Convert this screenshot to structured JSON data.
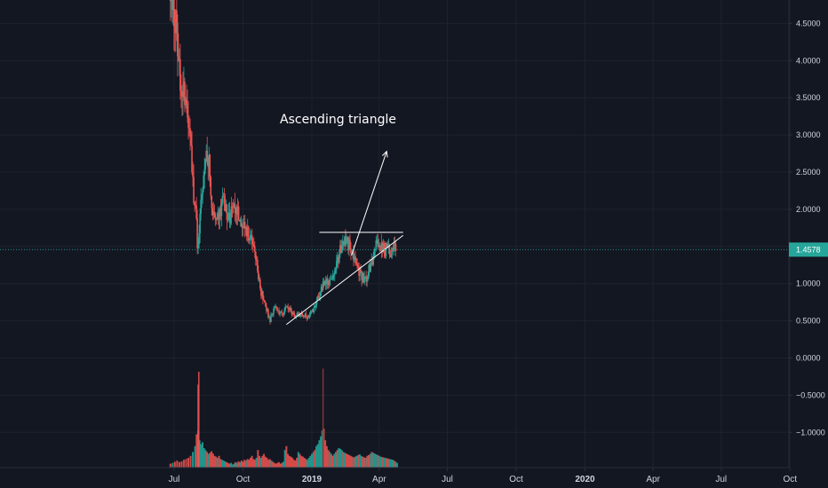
{
  "chart_data": {
    "type": "candlestick",
    "annotation": "Ascending triangle",
    "last_price": "1.4578",
    "last_price_value": 1.4578,
    "y_ticks": [
      "4.5000",
      "4.0000",
      "3.5000",
      "3.0000",
      "2.5000",
      "2.0000",
      "1.5000",
      "1.0000",
      "0.5000",
      "0.0000",
      "−0.5000",
      "−1.0000"
    ],
    "y_tick_values": [
      4.5,
      4.0,
      3.5,
      3.0,
      2.5,
      2.0,
      1.5,
      1.0,
      0.5,
      0.0,
      -0.5,
      -1.0
    ],
    "x_ticks": [
      "Jul",
      "Oct",
      "2019",
      "Apr",
      "Jul",
      "Oct",
      "2020",
      "Apr",
      "Jul",
      "Oct"
    ],
    "x_tick_bold": [
      false,
      false,
      true,
      false,
      false,
      false,
      true,
      false,
      false,
      false
    ],
    "x_tick_days": [
      0,
      92,
      184,
      274,
      365,
      457,
      549,
      640,
      731,
      823
    ],
    "x_start_day": -20,
    "price_path": [
      [
        -5,
        4.9
      ],
      [
        0,
        4.7
      ],
      [
        4,
        4.3
      ],
      [
        8,
        3.8
      ],
      [
        12,
        3.6
      ],
      [
        16,
        3.3
      ],
      [
        20,
        3.0
      ],
      [
        23,
        2.7
      ],
      [
        26,
        2.2
      ],
      [
        29,
        2.0
      ],
      [
        31,
        1.5
      ],
      [
        33,
        1.6
      ],
      [
        36,
        2.1
      ],
      [
        40,
        2.5
      ],
      [
        43,
        2.8
      ],
      [
        46,
        2.7
      ],
      [
        49,
        2.2
      ],
      [
        52,
        2.0
      ],
      [
        55,
        1.8
      ],
      [
        58,
        1.9
      ],
      [
        62,
        2.0
      ],
      [
        66,
        2.1
      ],
      [
        70,
        1.95
      ],
      [
        74,
        1.9
      ],
      [
        78,
        2.05
      ],
      [
        82,
        2.0
      ],
      [
        86,
        1.9
      ],
      [
        90,
        1.85
      ],
      [
        94,
        1.75
      ],
      [
        98,
        1.7
      ],
      [
        102,
        1.6
      ],
      [
        106,
        1.5
      ],
      [
        110,
        1.3
      ],
      [
        113,
        1.1
      ],
      [
        116,
        0.9
      ],
      [
        119,
        0.8
      ],
      [
        122,
        0.7
      ],
      [
        125,
        0.6
      ],
      [
        128,
        0.5
      ],
      [
        131,
        0.6
      ],
      [
        134,
        0.7
      ],
      [
        138,
        0.65
      ],
      [
        142,
        0.6
      ],
      [
        146,
        0.62
      ],
      [
        150,
        0.68
      ],
      [
        154,
        0.64
      ],
      [
        158,
        0.6
      ],
      [
        162,
        0.58
      ],
      [
        166,
        0.6
      ],
      [
        170,
        0.58
      ],
      [
        174,
        0.57
      ],
      [
        178,
        0.55
      ],
      [
        182,
        0.6
      ],
      [
        186,
        0.65
      ],
      [
        190,
        0.75
      ],
      [
        194,
        0.85
      ],
      [
        198,
        0.95
      ],
      [
        202,
        1.05
      ],
      [
        206,
        1.0
      ],
      [
        210,
        1.1
      ],
      [
        214,
        1.2
      ],
      [
        218,
        1.3
      ],
      [
        222,
        1.45
      ],
      [
        226,
        1.55
      ],
      [
        230,
        1.6
      ],
      [
        234,
        1.5
      ],
      [
        238,
        1.4
      ],
      [
        242,
        1.3
      ],
      [
        246,
        1.2
      ],
      [
        250,
        1.1
      ],
      [
        254,
        1.05
      ],
      [
        258,
        1.1
      ],
      [
        262,
        1.25
      ],
      [
        266,
        1.35
      ],
      [
        270,
        1.5
      ],
      [
        274,
        1.55
      ],
      [
        278,
        1.5
      ],
      [
        282,
        1.45
      ],
      [
        286,
        1.5
      ],
      [
        290,
        1.42
      ],
      [
        294,
        1.47
      ],
      [
        297,
        1.4578
      ]
    ],
    "volumes": [
      [
        -5,
        0.1
      ],
      [
        -2,
        0.12
      ],
      [
        1,
        0.15
      ],
      [
        4,
        0.18
      ],
      [
        7,
        0.14
      ],
      [
        10,
        0.16
      ],
      [
        13,
        0.2
      ],
      [
        16,
        0.22
      ],
      [
        19,
        0.25
      ],
      [
        22,
        0.3
      ],
      [
        25,
        0.4
      ],
      [
        28,
        0.55
      ],
      [
        30,
        0.85
      ],
      [
        32,
        0.95
      ],
      [
        34,
        0.7
      ],
      [
        36,
        0.6
      ],
      [
        38,
        0.65
      ],
      [
        40,
        0.5
      ],
      [
        42,
        0.45
      ],
      [
        44,
        0.4
      ],
      [
        46,
        0.35
      ],
      [
        48,
        0.38
      ],
      [
        50,
        0.42
      ],
      [
        52,
        0.36
      ],
      [
        54,
        0.3
      ],
      [
        56,
        0.28
      ],
      [
        58,
        0.25
      ],
      [
        60,
        0.3
      ],
      [
        62,
        0.22
      ],
      [
        64,
        0.2
      ],
      [
        66,
        0.18
      ],
      [
        68,
        0.16
      ],
      [
        70,
        0.14
      ],
      [
        72,
        0.12
      ],
      [
        74,
        0.1
      ],
      [
        76,
        0.12
      ],
      [
        78,
        0.08
      ],
      [
        80,
        0.1
      ],
      [
        82,
        0.14
      ],
      [
        84,
        0.12
      ],
      [
        86,
        0.16
      ],
      [
        88,
        0.14
      ],
      [
        90,
        0.18
      ],
      [
        92,
        0.15
      ],
      [
        94,
        0.2
      ],
      [
        96,
        0.18
      ],
      [
        98,
        0.22
      ],
      [
        100,
        0.2
      ],
      [
        102,
        0.25
      ],
      [
        104,
        0.3
      ],
      [
        106,
        0.22
      ],
      [
        108,
        0.2
      ],
      [
        110,
        0.25
      ],
      [
        112,
        0.45
      ],
      [
        114,
        0.3
      ],
      [
        116,
        0.25
      ],
      [
        118,
        0.3
      ],
      [
        120,
        0.35
      ],
      [
        122,
        0.28
      ],
      [
        124,
        0.25
      ],
      [
        126,
        0.2
      ],
      [
        128,
        0.22
      ],
      [
        130,
        0.18
      ],
      [
        132,
        0.15
      ],
      [
        134,
        0.12
      ],
      [
        136,
        0.1
      ],
      [
        138,
        0.12
      ],
      [
        140,
        0.14
      ],
      [
        142,
        0.1
      ],
      [
        144,
        0.12
      ],
      [
        146,
        0.15
      ],
      [
        148,
        0.45
      ],
      [
        150,
        0.55
      ],
      [
        152,
        0.35
      ],
      [
        154,
        0.3
      ],
      [
        156,
        0.28
      ],
      [
        158,
        0.25
      ],
      [
        160,
        0.2
      ],
      [
        162,
        0.18
      ],
      [
        164,
        0.25
      ],
      [
        166,
        0.4
      ],
      [
        168,
        0.35
      ],
      [
        170,
        0.3
      ],
      [
        172,
        0.28
      ],
      [
        174,
        0.25
      ],
      [
        176,
        0.22
      ],
      [
        178,
        0.2
      ],
      [
        180,
        0.25
      ],
      [
        182,
        0.3
      ],
      [
        184,
        0.35
      ],
      [
        186,
        0.4
      ],
      [
        188,
        0.45
      ],
      [
        190,
        0.55
      ],
      [
        192,
        0.6
      ],
      [
        194,
        0.7
      ],
      [
        196,
        0.8
      ],
      [
        198,
        0.95
      ],
      [
        200,
        1.0
      ],
      [
        202,
        0.7
      ],
      [
        204,
        0.55
      ],
      [
        206,
        0.45
      ],
      [
        208,
        0.4
      ],
      [
        210,
        0.35
      ],
      [
        212,
        0.3
      ],
      [
        214,
        0.35
      ],
      [
        216,
        0.4
      ],
      [
        218,
        0.45
      ],
      [
        220,
        0.5
      ],
      [
        222,
        0.48
      ],
      [
        224,
        0.45
      ],
      [
        226,
        0.4
      ],
      [
        228,
        0.38
      ],
      [
        230,
        0.36
      ],
      [
        232,
        0.34
      ],
      [
        234,
        0.32
      ],
      [
        236,
        0.3
      ],
      [
        238,
        0.28
      ],
      [
        240,
        0.26
      ],
      [
        242,
        0.28
      ],
      [
        244,
        0.3
      ],
      [
        246,
        0.32
      ],
      [
        248,
        0.34
      ],
      [
        250,
        0.3
      ],
      [
        252,
        0.28
      ],
      [
        254,
        0.26
      ],
      [
        256,
        0.25
      ],
      [
        258,
        0.3
      ],
      [
        260,
        0.32
      ],
      [
        262,
        0.35
      ],
      [
        264,
        0.4
      ],
      [
        266,
        0.38
      ],
      [
        268,
        0.36
      ],
      [
        270,
        0.34
      ],
      [
        272,
        0.32
      ],
      [
        274,
        0.3
      ],
      [
        276,
        0.28
      ],
      [
        278,
        0.27
      ],
      [
        280,
        0.26
      ],
      [
        282,
        0.25
      ],
      [
        284,
        0.24
      ],
      [
        286,
        0.23
      ],
      [
        288,
        0.22
      ],
      [
        290,
        0.21
      ],
      [
        292,
        0.2
      ],
      [
        294,
        0.18
      ],
      [
        296,
        0.15
      ],
      [
        298,
        0.12
      ]
    ],
    "vol_spikes": [
      [
        33,
        1.5
      ],
      [
        32,
        1.3
      ],
      [
        199,
        1.55
      ]
    ],
    "resistance_line": {
      "day0": 194,
      "price0": 1.69,
      "day1": 306,
      "price1": 1.69
    },
    "support_line": {
      "day0": 150,
      "price0": 0.45,
      "day1": 306,
      "price1": 1.65
    },
    "projection_arrow": {
      "day0": 237,
      "price0": 1.38,
      "day1": 284,
      "price1": 2.78
    },
    "colors": {
      "up": "#26a69a",
      "down": "#ef5350",
      "background": "#131722",
      "grid": "#1e222d",
      "text": "#d1d4dc",
      "price_line": "#26a69a",
      "drawing": "#ffffff"
    }
  }
}
